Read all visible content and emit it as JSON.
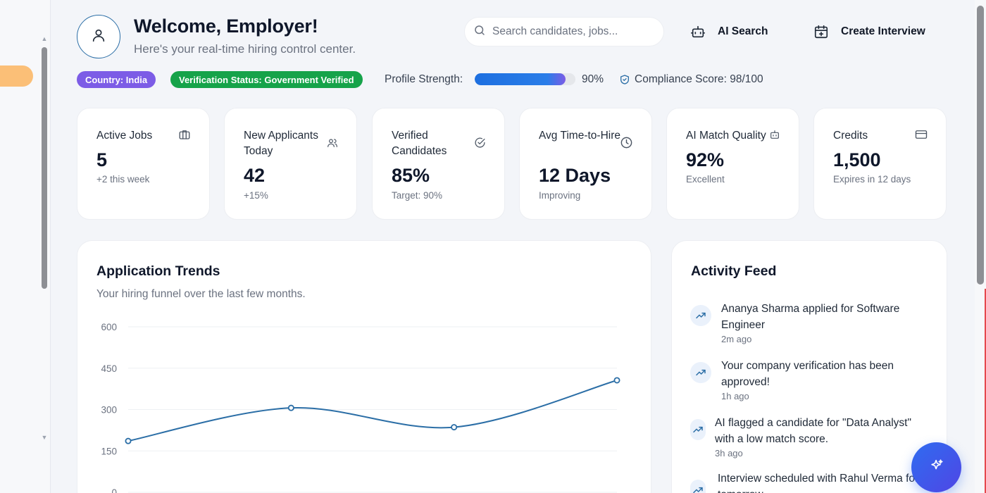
{
  "header": {
    "title": "Welcome, Employer!",
    "subtitle": "Here's your real-time hiring control center.",
    "search_placeholder": "Search candidates, jobs...",
    "ai_search_label": "AI Search",
    "create_interview_label": "Create Interview"
  },
  "status": {
    "country_badge": "Country: India",
    "verification_badge": "Verification Status: Government Verified",
    "profile_strength_label": "Profile Strength:",
    "profile_strength_fraction": 0.9,
    "profile_strength_value": "90%",
    "compliance_label": "Compliance Score: 98/100",
    "colors": {
      "country": "#7c5ce6",
      "verification": "#16a34a",
      "progress": "#1d6fe0"
    }
  },
  "stats": [
    {
      "label": "Active Jobs",
      "value": "5",
      "sub": "+2 this week",
      "icon": "briefcase-icon"
    },
    {
      "label": "New Applicants Today",
      "value": "42",
      "sub": "+15%",
      "icon": "users-icon"
    },
    {
      "label": "Verified Candidates",
      "value": "85%",
      "sub": "Target: 90%",
      "icon": "check-circle-icon"
    },
    {
      "label": "Avg Time-to-Hire",
      "value": "12 Days",
      "sub": "Improving",
      "icon": "clock-icon"
    },
    {
      "label": "AI Match Quality",
      "value": "92%",
      "sub": "Excellent",
      "icon": "robot-icon"
    },
    {
      "label": "Credits",
      "value": "1,500",
      "sub": "Expires in 12 days",
      "icon": "credit-card-icon"
    }
  ],
  "trends": {
    "title": "Application Trends",
    "subtitle": "Your hiring funnel over the last few months."
  },
  "chart_data": {
    "type": "line",
    "title": "Application Trends",
    "y_ticks": [
      0,
      150,
      300,
      450,
      600
    ],
    "ylim": [
      0,
      600
    ],
    "series": [
      {
        "values": [
          186,
          306,
          236,
          406
        ]
      }
    ],
    "line_color": "#2b6ea6",
    "grid": true
  },
  "feed": {
    "title": "Activity Feed",
    "items": [
      {
        "message": "Ananya Sharma applied for Software Engineer",
        "time": "2m ago"
      },
      {
        "message": "Your company verification has been approved!",
        "time": "1h ago"
      },
      {
        "message": "AI flagged a candidate for \"Data Analyst\" with a low match score.",
        "time": "3h ago"
      },
      {
        "message": "Interview scheduled with Rahul Verma for tomorrow.",
        "time": ""
      }
    ]
  },
  "accent_color": "#2f6cf0"
}
